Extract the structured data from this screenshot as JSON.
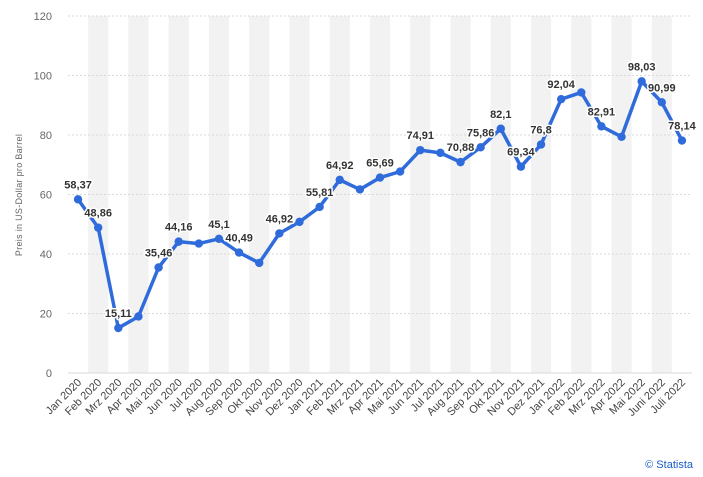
{
  "chart_data": {
    "type": "line",
    "title": "",
    "xlabel": "",
    "ylabel": "Preis in US-Dollar pro Barrel",
    "ylim": [
      0,
      120
    ],
    "yticks": [
      0,
      20,
      40,
      60,
      80,
      100,
      120
    ],
    "grid": true,
    "legend": "none",
    "colors": {
      "line": "#2f6bdb",
      "band": "#f2f2f2",
      "grid": "#d9d9d9"
    },
    "categories": [
      "Jan 2020",
      "Feb 2020",
      "Mrz 2020",
      "Apr 2020",
      "Mai 2020",
      "Jun 2020",
      "Jul 2020",
      "Aug 2020",
      "Sep 2020",
      "Okt 2020",
      "Nov 2020",
      "Dez 2020",
      "Jan 2021",
      "Feb 2021",
      "Mrz 2021",
      "Apr 2021",
      "Mai 2021",
      "Jun 2021",
      "Jul 2021",
      "Aug 2021",
      "Sep 2021",
      "Okt 2021",
      "Nov 2021",
      "Dez 2021",
      "Jan 2022",
      "Feb 2022",
      "Mrz 2022",
      "Apr 2022",
      "Mai 2022",
      "Juni 2022",
      "Juli 2022"
    ],
    "values": [
      58.37,
      48.86,
      15.11,
      19.0,
      35.46,
      44.16,
      43.5,
      45.1,
      40.49,
      37.0,
      46.92,
      50.8,
      55.81,
      64.92,
      61.7,
      65.69,
      67.7,
      74.91,
      74.0,
      70.88,
      75.86,
      82.1,
      69.34,
      76.8,
      92.04,
      94.3,
      82.91,
      79.4,
      98.03,
      90.99,
      78.14
    ],
    "data_labels": [
      "58,37",
      "48,86",
      "15,11",
      "",
      "35,46",
      "44,16",
      "",
      "45,1",
      "40,49",
      "",
      "46,92",
      "",
      "55,81",
      "64,92",
      "",
      "65,69",
      "",
      "74,91",
      "",
      "70,88",
      "75,86",
      "82,1",
      "69,34",
      "76,8",
      "92,04",
      "",
      "82,91",
      "",
      "98,03",
      "90,99",
      "78,14"
    ]
  },
  "credit": "© Statista"
}
